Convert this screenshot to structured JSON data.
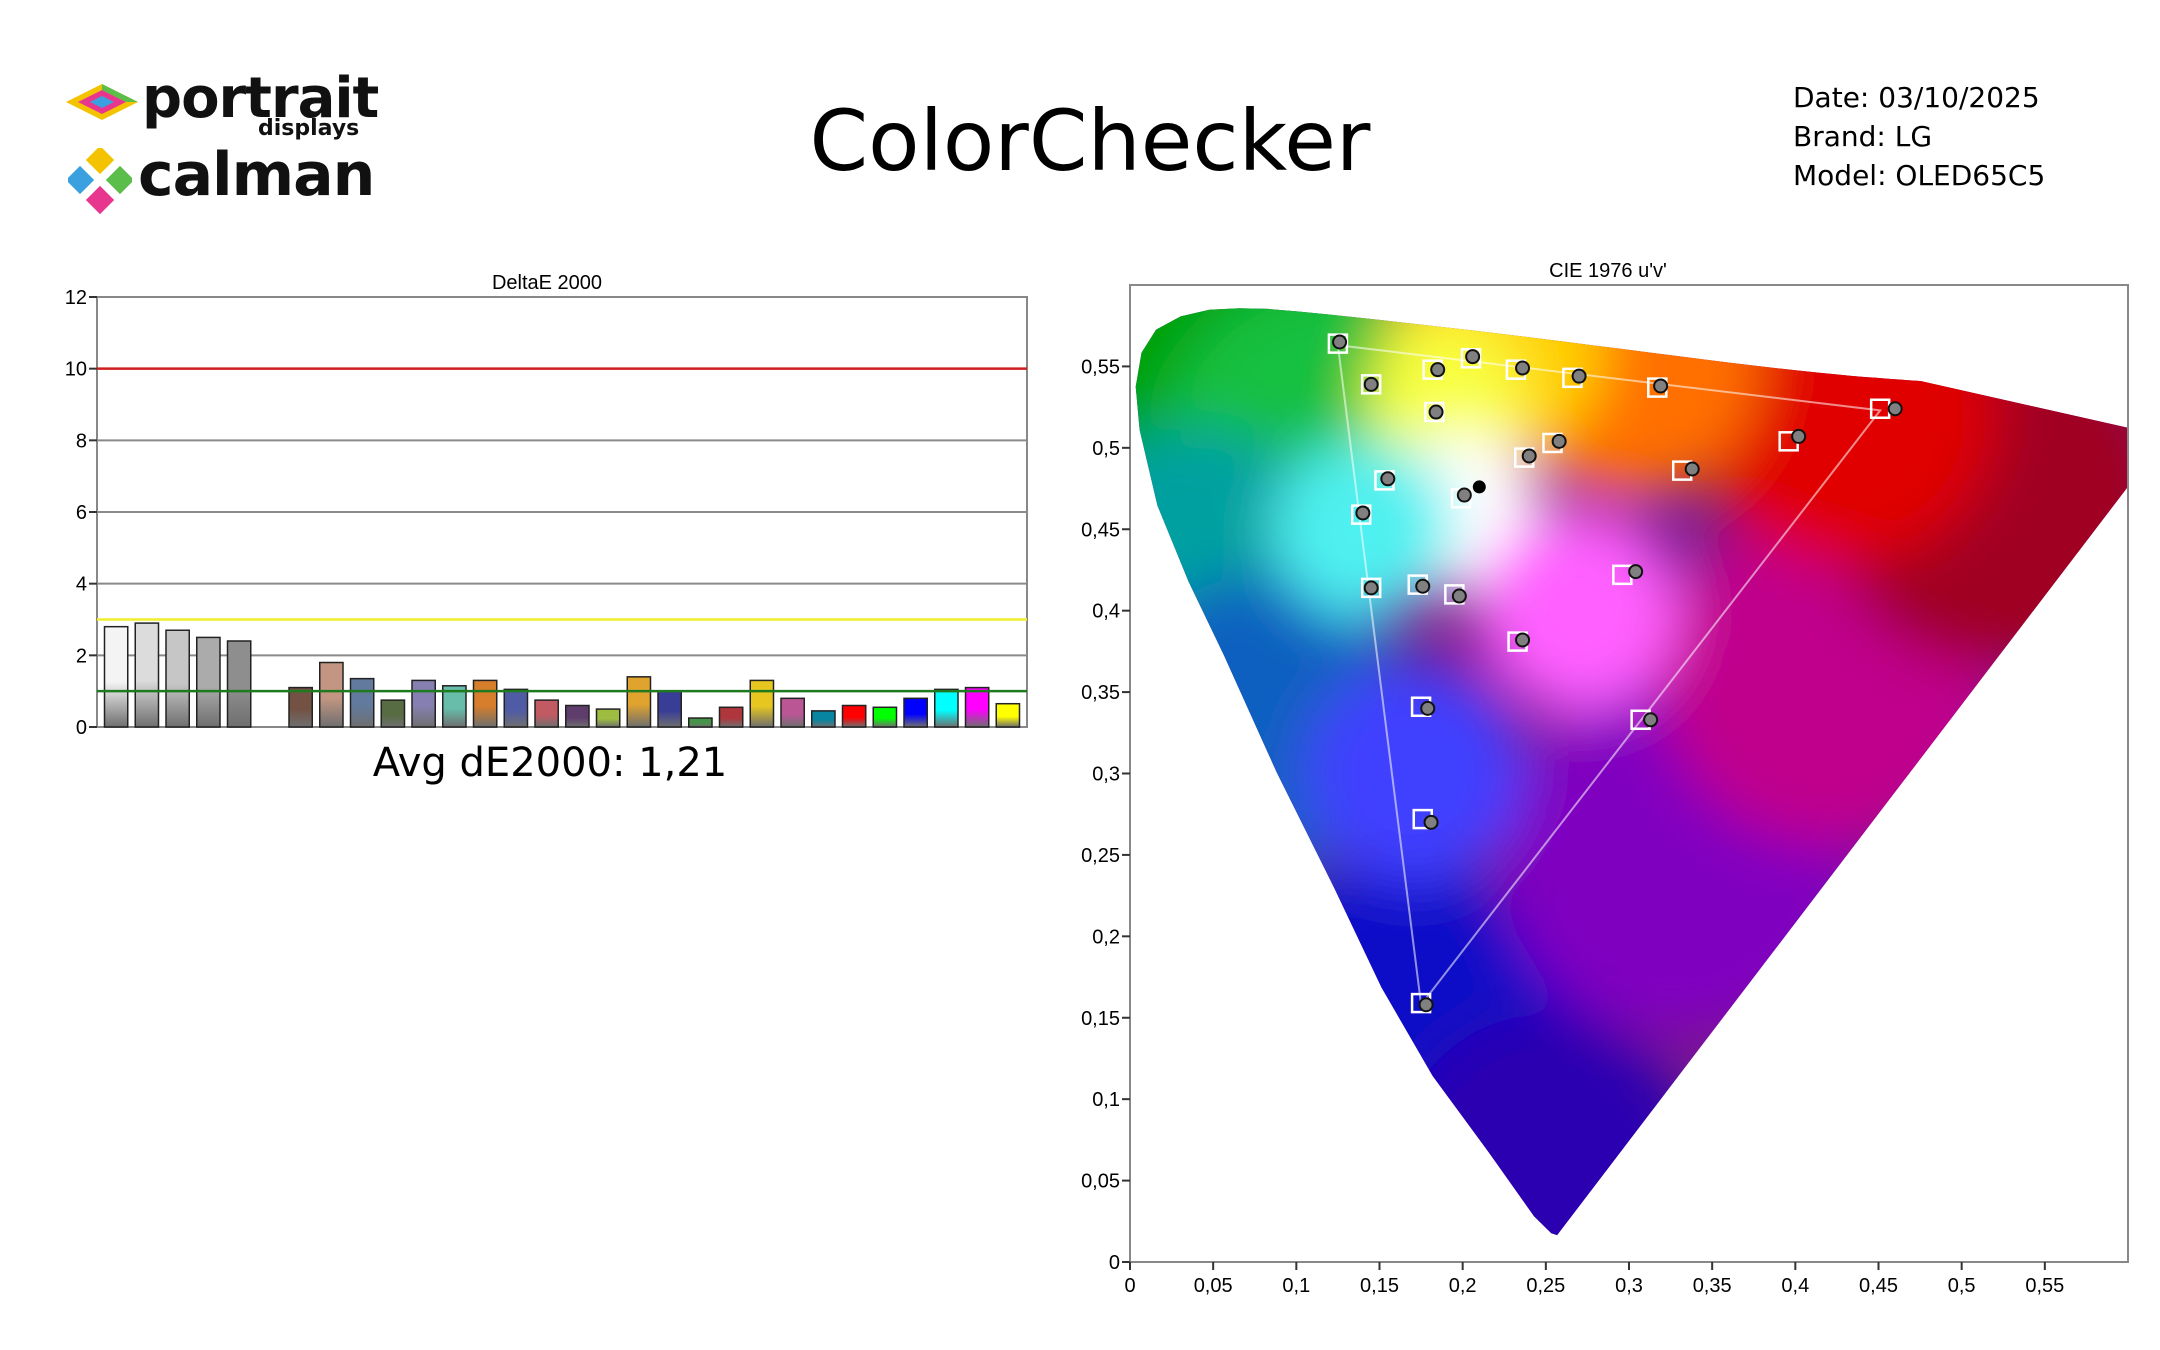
{
  "header": {
    "title": "ColorChecker",
    "date": "Date: 03/10/2025",
    "brand": "Brand: LG",
    "model": "Model: OLED65C5"
  },
  "logos": {
    "portrait": "portrait",
    "portrait_sub": "displays",
    "calman": "calman"
  },
  "summary": {
    "avg_text": "Avg dE2000: 1,21"
  },
  "chart_data": [
    {
      "type": "bar",
      "title": "DeltaE 2000",
      "ylim": [
        0,
        12
      ],
      "yticks": [
        "0",
        "2",
        "4",
        "6",
        "8",
        "10",
        "12"
      ],
      "reference_lines": [
        {
          "value": 10,
          "color": "#d11f1f"
        },
        {
          "value": 3,
          "color": "#f2ee2a"
        },
        {
          "value": 1,
          "color": "#1f7a1f"
        }
      ],
      "grid": true,
      "bars": [
        {
          "value": 2.8,
          "color": "#f4f4f4"
        },
        {
          "value": 2.9,
          "color": "#dcdcdc"
        },
        {
          "value": 2.7,
          "color": "#c6c6c6"
        },
        {
          "value": 2.5,
          "color": "#ababab"
        },
        {
          "value": 2.4,
          "color": "#8e8e8e"
        },
        {
          "value": null,
          "color": ""
        },
        {
          "value": 1.1,
          "color": "#735244"
        },
        {
          "value": 1.8,
          "color": "#c29682"
        },
        {
          "value": 1.35,
          "color": "#627a9d"
        },
        {
          "value": 0.75,
          "color": "#576c43"
        },
        {
          "value": 1.3,
          "color": "#8580b1"
        },
        {
          "value": 1.15,
          "color": "#67bdaa"
        },
        {
          "value": 1.3,
          "color": "#d67e2c"
        },
        {
          "value": 1.05,
          "color": "#505ba6"
        },
        {
          "value": 0.75,
          "color": "#c15a63"
        },
        {
          "value": 0.6,
          "color": "#5e3c6c"
        },
        {
          "value": 0.5,
          "color": "#9dbc40"
        },
        {
          "value": 1.4,
          "color": "#e0a32e"
        },
        {
          "value": 1.0,
          "color": "#383d96"
        },
        {
          "value": 0.25,
          "color": "#469449"
        },
        {
          "value": 0.55,
          "color": "#af363c"
        },
        {
          "value": 1.3,
          "color": "#e7c71f"
        },
        {
          "value": 0.8,
          "color": "#bb5695"
        },
        {
          "value": 0.45,
          "color": "#0885a1"
        },
        {
          "value": 0.6,
          "color": "#ff0000"
        },
        {
          "value": 0.55,
          "color": "#00ff00"
        },
        {
          "value": 0.8,
          "color": "#0000ff"
        },
        {
          "value": 1.05,
          "color": "#00ffff"
        },
        {
          "value": 1.1,
          "color": "#ff00ff"
        },
        {
          "value": 0.65,
          "color": "#ffff00"
        }
      ]
    },
    {
      "type": "scatter",
      "title": "CIE 1976 u'v'",
      "xlim": [
        0,
        0.6
      ],
      "ylim": [
        0,
        0.6
      ],
      "xticks": [
        "0",
        "0,05",
        "0,1",
        "0,15",
        "0,2",
        "0,25",
        "0,3",
        "0,35",
        "0,4",
        "0,45",
        "0,5",
        "0,55"
      ],
      "yticks": [
        "0",
        "0,05",
        "0,1",
        "0,15",
        "0,2",
        "0,25",
        "0,3",
        "0,35",
        "0,4",
        "0,45",
        "0,5",
        "0,55"
      ],
      "gamut_triangle": [
        [
          0.451,
          0.523
        ],
        [
          0.125,
          0.563
        ],
        [
          0.175,
          0.158
        ]
      ],
      "targets": [
        [
          0.125,
          0.564
        ],
        [
          0.145,
          0.539
        ],
        [
          0.183,
          0.522
        ],
        [
          0.205,
          0.555
        ],
        [
          0.232,
          0.548
        ],
        [
          0.266,
          0.543
        ],
        [
          0.317,
          0.537
        ],
        [
          0.451,
          0.524
        ],
        [
          0.396,
          0.504
        ],
        [
          0.332,
          0.486
        ],
        [
          0.254,
          0.503
        ],
        [
          0.237,
          0.494
        ],
        [
          0.153,
          0.48
        ],
        [
          0.139,
          0.459
        ],
        [
          0.145,
          0.414
        ],
        [
          0.173,
          0.416
        ],
        [
          0.195,
          0.41
        ],
        [
          0.233,
          0.381
        ],
        [
          0.296,
          0.422
        ],
        [
          0.175,
          0.341
        ],
        [
          0.307,
          0.333
        ],
        [
          0.176,
          0.272
        ],
        [
          0.175,
          0.159
        ],
        [
          0.199,
          0.469
        ],
        [
          0.182,
          0.548
        ]
      ],
      "measured": [
        [
          0.126,
          0.565
        ],
        [
          0.145,
          0.539
        ],
        [
          0.184,
          0.522
        ],
        [
          0.206,
          0.556
        ],
        [
          0.236,
          0.549
        ],
        [
          0.27,
          0.544
        ],
        [
          0.319,
          0.538
        ],
        [
          0.46,
          0.524
        ],
        [
          0.402,
          0.507
        ],
        [
          0.338,
          0.487
        ],
        [
          0.258,
          0.504
        ],
        [
          0.24,
          0.495
        ],
        [
          0.155,
          0.481
        ],
        [
          0.14,
          0.46
        ],
        [
          0.145,
          0.414
        ],
        [
          0.176,
          0.415
        ],
        [
          0.198,
          0.409
        ],
        [
          0.236,
          0.382
        ],
        [
          0.304,
          0.424
        ],
        [
          0.179,
          0.34
        ],
        [
          0.313,
          0.333
        ],
        [
          0.181,
          0.27
        ],
        [
          0.178,
          0.158
        ],
        [
          0.201,
          0.471
        ],
        [
          0.185,
          0.548
        ]
      ],
      "white_point": [
        0.21,
        0.476
      ]
    }
  ]
}
